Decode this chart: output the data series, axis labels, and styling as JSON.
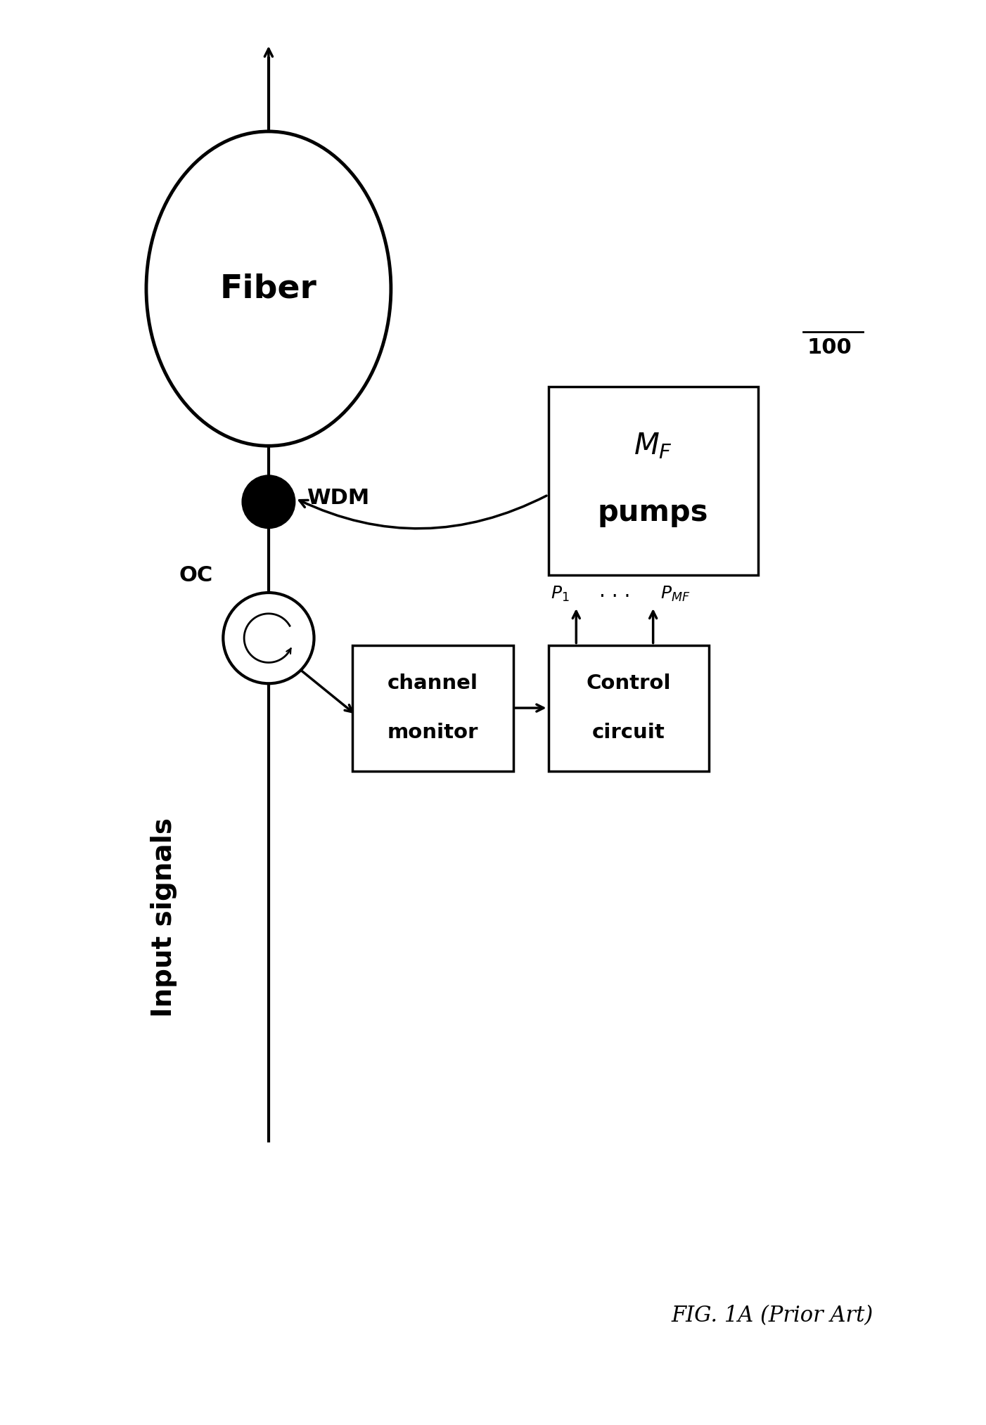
{
  "bg_color": "#ffffff",
  "line_color": "#000000",
  "figsize": [
    14.02,
    20.27
  ],
  "dpi": 100,
  "title": "FIG. 1A (Prior Art)",
  "label_100": "100",
  "label_fiber": "Fiber",
  "label_wdm": "WDM",
  "label_oc": "OC",
  "label_input": "Input signals",
  "label_channel_monitor_1": "channel",
  "label_channel_monitor_2": "monitor",
  "label_control_1": "Control",
  "label_control_2": "circuit",
  "label_pumps": "pumps",
  "label_p1": "$P_1$",
  "label_pmf": "$P_{MF}$",
  "fig_width": 14.02,
  "fig_height": 20.27
}
